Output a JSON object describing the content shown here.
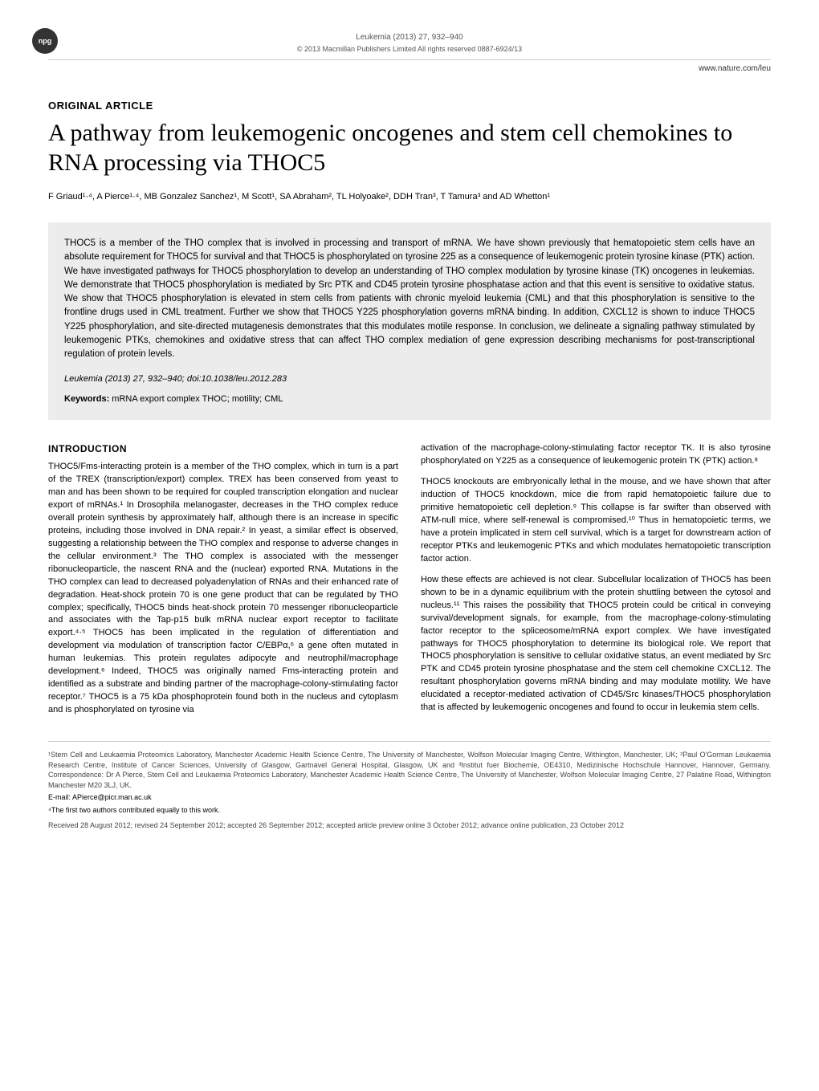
{
  "header": {
    "npg_badge": "npg",
    "journal_line": "Leukemia (2013) 27, 932–940",
    "copyright_line": "© 2013 Macmillan Publishers Limited   All rights reserved 0887-6924/13",
    "url": "www.nature.com/leu"
  },
  "article": {
    "type": "ORIGINAL ARTICLE",
    "title": "A pathway from leukemogenic oncogenes and stem cell chemokines to RNA processing via THOC5",
    "authors": "F Griaud¹·⁴, A Pierce¹·⁴, MB Gonzalez Sanchez¹, M Scott¹, SA Abraham², TL Holyoake², DDH Tran³, T Tamura³ and AD Whetton¹"
  },
  "abstract": {
    "text": "THOC5 is a member of the THO complex that is involved in processing and transport of mRNA. We have shown previously that hematopoietic stem cells have an absolute requirement for THOC5 for survival and that THOC5 is phosphorylated on tyrosine 225 as a consequence of leukemogenic protein tyrosine kinase (PTK) action. We have investigated pathways for THOC5 phosphorylation to develop an understanding of THO complex modulation by tyrosine kinase (TK) oncogenes in leukemias. We demonstrate that THOC5 phosphorylation is mediated by Src PTK and CD45 protein tyrosine phosphatase action and that this event is sensitive to oxidative status. We show that THOC5 phosphorylation is elevated in stem cells from patients with chronic myeloid leukemia (CML) and that this phosphorylation is sensitive to the frontline drugs used in CML treatment. Further we show that THOC5 Y225 phosphorylation governs mRNA binding. In addition, CXCL12 is shown to induce THOC5 Y225 phosphorylation, and site-directed mutagenesis demonstrates that this modulates motile response. In conclusion, we delineate a signaling pathway stimulated by leukemogenic PTKs, chemokines and oxidative stress that can affect THO complex mediation of gene expression describing mechanisms for post-transcriptional regulation of protein levels.",
    "citation": "Leukemia (2013) 27, 932–940; doi:10.1038/leu.2012.283",
    "keywords_label": "Keywords:",
    "keywords": " mRNA export complex THOC; motility; CML"
  },
  "introduction": {
    "heading": "INTRODUCTION",
    "left_paragraphs": [
      "THOC5/Fms-interacting protein is a member of the THO complex, which in turn is a part of the TREX (transcription/export) complex. TREX has been conserved from yeast to man and has been shown to be required for coupled transcription elongation and nuclear export of mRNAs.¹ In Drosophila melanogaster, decreases in the THO complex reduce overall protein synthesis by approximately half, although there is an increase in specific proteins, including those involved in DNA repair.² In yeast, a similar effect is observed, suggesting a relationship between the THO complex and response to adverse changes in the cellular environment.³ The THO complex is associated with the messenger ribonucleoparticle, the nascent RNA and the (nuclear) exported RNA. Mutations in the THO complex can lead to decreased polyadenylation of RNAs and their enhanced rate of degradation. Heat-shock protein 70 is one gene product that can be regulated by THO complex; specifically, THOC5 binds heat-shock protein 70 messenger ribonucleoparticle and associates with the Tap-p15 bulk mRNA nuclear export receptor to facilitate export.⁴·⁵ THOC5 has been implicated in the regulation of differentiation and development via modulation of transcription factor C/EBPα,⁶ a gene often mutated in human leukemias. This protein regulates adipocyte and neutrophil/macrophage development.⁶ Indeed, THOC5 was originally named Fms-interacting protein and identified as a substrate and binding partner of the macrophage-colony-stimulating factor receptor.⁷ THOC5 is a 75 kDa phosphoprotein found both in the nucleus and cytoplasm and is phosphorylated on tyrosine via"
    ],
    "right_paragraphs": [
      "activation of the macrophage-colony-stimulating factor receptor TK. It is also tyrosine phosphorylated on Y225 as a consequence of leukemogenic protein TK (PTK) action.⁸",
      "THOC5 knockouts are embryonically lethal in the mouse, and we have shown that after induction of THOC5 knockdown, mice die from rapid hematopoietic failure due to primitive hematopoietic cell depletion.⁹ This collapse is far swifter than observed with ATM-null mice, where self-renewal is compromised.¹⁰ Thus in hematopoietic terms, we have a protein implicated in stem cell survival, which is a target for downstream action of receptor PTKs and leukemogenic PTKs and which modulates hematopoietic transcription factor action.",
      "How these effects are achieved is not clear. Subcellular localization of THOC5 has been shown to be in a dynamic equilibrium with the protein shuttling between the cytosol and nucleus.¹¹ This raises the possibility that THOC5 protein could be critical in conveying survival/development signals, for example, from the macrophage-colony-stimulating factor receptor to the spliceosome/mRNA export complex. We have investigated pathways for THOC5 phosphorylation to determine its biological role. We report that THOC5 phosphorylation is sensitive to cellular oxidative status, an event mediated by Src PTK and CD45 protein tyrosine phosphatase and the stem cell chemokine CXCL12. The resultant phosphorylation governs mRNA binding and may modulate motility. We have elucidated a receptor-mediated activation of CD45/Src kinases/THOC5 phosphorylation that is affected by leukemogenic oncogenes and found to occur in leukemia stem cells."
    ]
  },
  "footer": {
    "affiliations": "¹Stem Cell and Leukaemia Proteomics Laboratory, Manchester Academic Health Science Centre, The University of Manchester, Wolfson Molecular Imaging Centre, Withington, Manchester, UK; ²Paul O'Gorman Leukaemia Research Centre, Institute of Cancer Sciences, University of Glasgow, Gartnavel General Hospital, Glasgow, UK and ³Institut fuer Biochemie, OE4310, Medizinische Hochschule Hannover, Hannover, Germany. Correspondence: Dr A Pierce, Stem Cell and Leukaemia Proteomics Laboratory, Manchester Academic Health Science Centre, The University of Manchester, Wolfson Molecular Imaging Centre, 27 Palatine Road, Withington Manchester M20 3LJ, UK.",
    "email": "E-mail: APierce@picr.man.ac.uk",
    "footnote": "⁴The first two authors contributed equally to this work.",
    "received": "Received 28 August 2012; revised 24 September 2012; accepted 26 September 2012; accepted article preview online 3 October 2012; advance online publication, 23 October 2012"
  }
}
